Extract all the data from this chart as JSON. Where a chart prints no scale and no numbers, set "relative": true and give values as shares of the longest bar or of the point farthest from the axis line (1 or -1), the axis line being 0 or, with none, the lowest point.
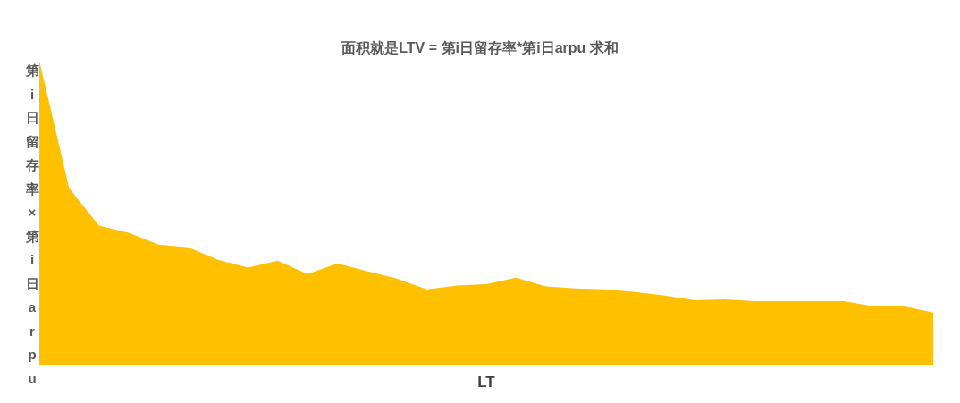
{
  "chart_data": {
    "type": "area",
    "title": "面积就是LTV  = 第i日留存率*第i日arpu  求和",
    "xlabel": "LT",
    "ylabel": "第i日留存率×第i日arpu",
    "relative": true,
    "grid": false,
    "categories": [
      null,
      null,
      null,
      null,
      null,
      null,
      null,
      null,
      null,
      null,
      null,
      null,
      null,
      null,
      null,
      null,
      null,
      null,
      null,
      null,
      null,
      null,
      null,
      null,
      null,
      null,
      null,
      null,
      null,
      null,
      null
    ],
    "series": [
      {
        "color": "#ffc000",
        "values": [
          1,
          0.581,
          0.457,
          0.434,
          0.395,
          0.386,
          0.345,
          0.319,
          0.342,
          0.298,
          0.333,
          0.307,
          0.283,
          0.248,
          0.26,
          0.265,
          0.286,
          0.257,
          0.251,
          0.248,
          0.239,
          0.227,
          0.212,
          0.215,
          0.209,
          0.209,
          0.209,
          0.209,
          0.192,
          0.192,
          0.171
        ]
      }
    ]
  }
}
